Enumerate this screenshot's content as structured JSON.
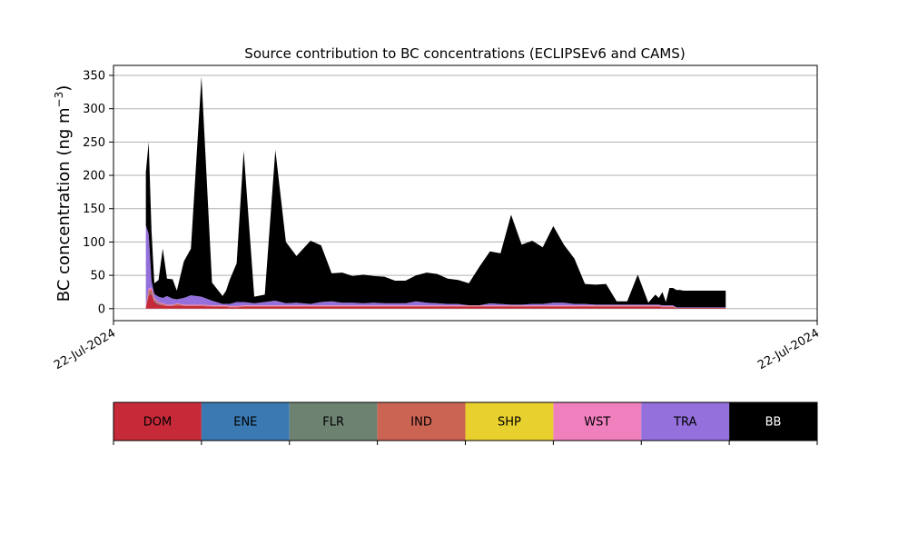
{
  "chart_data": {
    "type": "area",
    "title": "Source contribution to BC concentrations (ECLIPSEv6 and CAMS)",
    "ylabel_main": "BC concentration (ng m",
    "ylabel_sup": "−3",
    "ylabel_close": ")",
    "xlabel": "",
    "ylim": [
      -18,
      365
    ],
    "xlim": [
      0,
      100
    ],
    "yticks": [
      0,
      50,
      100,
      150,
      200,
      250,
      300,
      350
    ],
    "ytick_labels": [
      "0",
      "50",
      "100",
      "150",
      "200",
      "250",
      "300",
      "350"
    ],
    "xtick_labels": [
      "22-Jul-2024",
      "22-Jul-2024"
    ],
    "grid": "horizontal",
    "stacked": true,
    "x": [
      4.6,
      5.0,
      5.4,
      5.8,
      6.4,
      7.0,
      7.6,
      8.4,
      9.0,
      10.0,
      11.0,
      12.5,
      14.0,
      15.5,
      16.0,
      16.5,
      17.5,
      18.5,
      20.0,
      21.5,
      23.0,
      24.5,
      26.0,
      28.0,
      29.5,
      31.0,
      32.5,
      34.0,
      35.5,
      37.0,
      38.5,
      40.0,
      41.5,
      43.0,
      44.5,
      46.0,
      47.5,
      49.0,
      50.5,
      52.0,
      53.5,
      55.0,
      56.5,
      58.0,
      59.5,
      61.0,
      62.5,
      64.0,
      65.5,
      67.0,
      68.5,
      70.0,
      71.5,
      73.0,
      74.5,
      76.0,
      77.0,
      77.5,
      78.0,
      78.5,
      79.0,
      79.5,
      80.0,
      80.5,
      81.0,
      82.0,
      83.0,
      84.0,
      85.0,
      86.0,
      87.0
    ],
    "series": [
      {
        "name": "DOM",
        "values": [
          2,
          20,
          22,
          10,
          6,
          5,
          4,
          4,
          5,
          4,
          4,
          4,
          3,
          3,
          3,
          2,
          2,
          3,
          3,
          3,
          3,
          3,
          3,
          3,
          3,
          3,
          3,
          3,
          3,
          3,
          3,
          3,
          3,
          3,
          3,
          3,
          3,
          3,
          3,
          3,
          3,
          3,
          3,
          3,
          3,
          3,
          3,
          3,
          3,
          3,
          3,
          3,
          3,
          3,
          3,
          3,
          3,
          3,
          2,
          2,
          2,
          2,
          1,
          1,
          1,
          1,
          1,
          1,
          1,
          1,
          1
        ]
      },
      {
        "name": "ENE",
        "values": [
          0,
          1,
          1,
          1,
          1,
          0,
          0,
          0,
          0,
          0,
          0,
          0,
          0,
          0,
          0,
          0,
          0,
          0,
          0,
          0,
          0,
          0,
          0,
          0,
          0,
          0,
          0,
          0,
          0,
          0,
          0,
          0,
          0,
          0,
          0,
          0,
          0,
          0,
          0,
          0,
          0,
          0,
          0,
          0,
          0,
          0,
          0,
          0,
          0,
          0,
          0,
          0,
          0,
          0,
          0,
          0,
          0,
          0,
          0,
          0,
          0,
          0,
          0,
          0,
          0,
          0,
          0,
          0,
          0,
          0,
          0
        ]
      },
      {
        "name": "FLR",
        "values": [
          0,
          0,
          0,
          0,
          0,
          0,
          0,
          0,
          0,
          0,
          0,
          0,
          0,
          0,
          0,
          0,
          0,
          0,
          0,
          0,
          0,
          0,
          0,
          0,
          0,
          0,
          0,
          0,
          0,
          0,
          0,
          0,
          0,
          0,
          0,
          0,
          0,
          0,
          0,
          0,
          0,
          0,
          0,
          0,
          0,
          0,
          0,
          0,
          0,
          0,
          0,
          0,
          0,
          0,
          0,
          0,
          0,
          0,
          0,
          0,
          0,
          0,
          0,
          0,
          0,
          0,
          0,
          0,
          0,
          0,
          0
        ]
      },
      {
        "name": "IND",
        "values": [
          1,
          6,
          6,
          3,
          2,
          2,
          1,
          1,
          2,
          1,
          1,
          1,
          1,
          1,
          1,
          1,
          1,
          1,
          1,
          1,
          1,
          1,
          1,
          1,
          1,
          1,
          1,
          1,
          1,
          1,
          1,
          1,
          1,
          1,
          1,
          1,
          1,
          1,
          1,
          1,
          1,
          1,
          1,
          1,
          1,
          1,
          1,
          1,
          1,
          1,
          1,
          1,
          1,
          1,
          1,
          1,
          1,
          1,
          1,
          1,
          1,
          1,
          0,
          0,
          0,
          0,
          0,
          0,
          0,
          0,
          0
        ]
      },
      {
        "name": "SHP",
        "values": [
          0,
          0,
          0,
          0,
          0,
          0,
          0,
          0,
          0,
          0,
          0,
          0,
          0,
          0,
          0,
          0,
          0,
          0,
          0,
          0,
          0,
          0,
          0,
          0,
          0,
          0,
          0,
          0,
          0,
          0,
          0,
          0,
          0,
          0,
          0,
          0,
          0,
          0,
          0,
          0,
          0,
          0,
          0,
          0,
          0,
          0,
          0,
          0,
          0,
          0,
          0,
          0,
          0,
          0,
          0,
          0,
          0,
          0,
          0,
          0,
          0,
          0,
          0,
          0,
          0,
          0,
          0,
          0,
          0,
          0,
          0
        ]
      },
      {
        "name": "WST",
        "values": [
          1,
          3,
          3,
          2,
          1,
          1,
          1,
          1,
          1,
          1,
          1,
          1,
          1,
          1,
          1,
          1,
          1,
          1,
          1,
          1,
          1,
          1,
          1,
          1,
          1,
          1,
          1,
          1,
          1,
          1,
          1,
          1,
          1,
          1,
          1,
          1,
          1,
          1,
          1,
          1,
          1,
          1,
          1,
          1,
          1,
          1,
          1,
          1,
          1,
          1,
          1,
          1,
          1,
          1,
          1,
          1,
          1,
          1,
          1,
          1,
          1,
          1,
          0,
          0,
          0,
          0,
          0,
          0,
          0,
          0,
          0
        ]
      },
      {
        "name": "TRA",
        "values": [
          121,
          82,
          10,
          6,
          8,
          8,
          13,
          9,
          6,
          10,
          14,
          12,
          7,
          2,
          2,
          3,
          6,
          5,
          3,
          5,
          7,
          3,
          4,
          2,
          5,
          6,
          4,
          4,
          3,
          4,
          3,
          3,
          3,
          6,
          4,
          3,
          2,
          2,
          0,
          0,
          3,
          2,
          1,
          1,
          2,
          2,
          4,
          4,
          2,
          2,
          1,
          1,
          1,
          1,
          1,
          1,
          1,
          1,
          1,
          1,
          1,
          1,
          1,
          1,
          1,
          1,
          1,
          1,
          1,
          1,
          1
        ]
      },
      {
        "name": "BB",
        "values": [
          80,
          138,
          75,
          16,
          25,
          74,
          26,
          29,
          13,
          55,
          70,
          330,
          27,
          12,
          20,
          36,
          58,
          227,
          10,
          11,
          226,
          92,
          70,
          95,
          85,
          42,
          45,
          40,
          43,
          40,
          40,
          34,
          34,
          39,
          45,
          44,
          38,
          36,
          33,
          58,
          78,
          76,
          135,
          90,
          95,
          85,
          115,
          87,
          68,
          30,
          30,
          31,
          5,
          5,
          45,
          3,
          15,
          10,
          20,
          5,
          26,
          26,
          26,
          26,
          25,
          25,
          25,
          25,
          25,
          25,
          25
        ]
      }
    ]
  },
  "legend": {
    "items": [
      {
        "name": "DOM",
        "color": "#c62a39",
        "text_color": "#000000"
      },
      {
        "name": "ENE",
        "color": "#3a79b2",
        "text_color": "#000000"
      },
      {
        "name": "FLR",
        "color": "#6e8272",
        "text_color": "#000000"
      },
      {
        "name": "IND",
        "color": "#cc6454",
        "text_color": "#000000"
      },
      {
        "name": "SHP",
        "color": "#e8d02e",
        "text_color": "#000000"
      },
      {
        "name": "WST",
        "color": "#f07fbe",
        "text_color": "#000000"
      },
      {
        "name": "TRA",
        "color": "#9370db",
        "text_color": "#000000"
      },
      {
        "name": "BB",
        "color": "#000000",
        "text_color": "#ffffff"
      }
    ]
  }
}
